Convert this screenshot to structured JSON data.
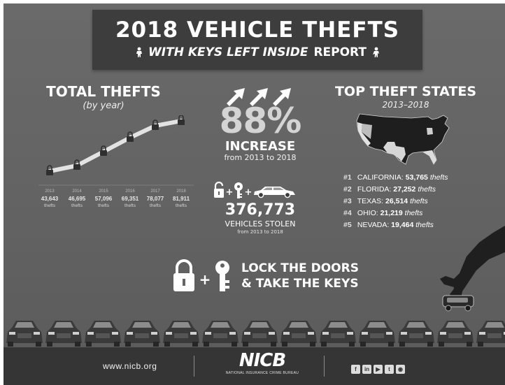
{
  "header": {
    "title": "2018 VEHICLE THEFTS",
    "subtitle": "WITH KEYS LEFT INSIDE",
    "subtitle_bold": "REPORT"
  },
  "total_thefts": {
    "title": "TOTAL THEFTS",
    "subtitle": "(by year)",
    "unit_label": "thefts",
    "years": [
      {
        "year": "2013",
        "value": "43,643"
      },
      {
        "year": "2014",
        "value": "46,695"
      },
      {
        "year": "2015",
        "value": "57,096"
      },
      {
        "year": "2016",
        "value": "69,351"
      },
      {
        "year": "2017",
        "value": "78,077"
      },
      {
        "year": "2018",
        "value": "81,911"
      }
    ]
  },
  "increase": {
    "percent": "88%",
    "label": "INCREASE",
    "sublabel": "from 2013 to 2018"
  },
  "stolen": {
    "number": "376,773",
    "label": "VEHICLES STOLEN",
    "sublabel": "from 2013 to 2018"
  },
  "top_states": {
    "title": "TOP THEFT STATES",
    "subtitle": "2013–2018",
    "unit_label": "thefts",
    "items": [
      {
        "rank": "#1",
        "state": "CALIFORNIA:",
        "value": "53,765"
      },
      {
        "rank": "#2",
        "state": "FLORIDA:",
        "value": "27,252"
      },
      {
        "rank": "#3",
        "state": "TEXAS:",
        "value": "26,514"
      },
      {
        "rank": "#4",
        "state": "OHIO:",
        "value": "21,219"
      },
      {
        "rank": "#5",
        "state": "NEVADA:",
        "value": "19,464"
      }
    ]
  },
  "cta": {
    "line1": "LOCK THE DOORS",
    "line2": "& TAKE THE KEYS"
  },
  "footer": {
    "url": "www.nicb.org",
    "logo_text": "NICB",
    "logo_tagline": "NATIONAL INSURANCE CRIME BUREAU",
    "social": [
      "f",
      "in",
      "▶",
      "t",
      "◉"
    ]
  },
  "colors": {
    "background": "#636363",
    "title_box": "#3d3d3d",
    "footer": "#353535",
    "highlight": "#d4d4d4"
  },
  "icons": [
    "thief-icon",
    "lock-icon",
    "key-icon",
    "car-icon",
    "up-arrow-icon",
    "hand-icon",
    "us-map-icon"
  ]
}
